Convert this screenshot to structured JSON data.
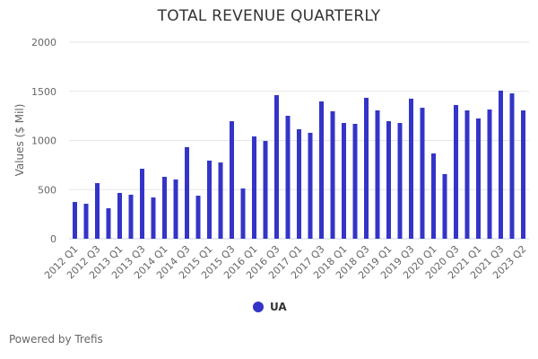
{
  "chart_data": {
    "type": "bar",
    "title": "TOTAL REVENUE QUARTERLY",
    "xlabel": "",
    "ylabel": "Values ($ Mil)",
    "ylim": [
      0,
      2000
    ],
    "yticks": [
      0,
      500,
      1000,
      1500,
      2000
    ],
    "grid": true,
    "legend_position": "bottom-center",
    "x_tick_labels": [
      "2012 Q1",
      "2012 Q3",
      "2013 Q1",
      "2013 Q3",
      "2014 Q1",
      "2014 Q3",
      "2015 Q1",
      "2015 Q3",
      "2016 Q1",
      "2016 Q3",
      "2017 Q1",
      "2017 Q3",
      "2018 Q1",
      "2018 Q3",
      "2019 Q1",
      "2019 Q3",
      "2020 Q1",
      "2020 Q3",
      "2021 Q1",
      "2021 Q3",
      "2023 Q2"
    ],
    "series": [
      {
        "name": "UA",
        "color": "#3434c8",
        "values": [
          374,
          356,
          566,
          310,
          466,
          448,
          712,
          420,
          630,
          603,
          932,
          438,
          795,
          776,
          1196,
          511,
          1041,
          995,
          1461,
          1251,
          1114,
          1078,
          1397,
          1297,
          1178,
          1169,
          1434,
          1306,
          1196,
          1178,
          1425,
          1333,
          868,
          658,
          1361,
          1306,
          1224,
          1315,
          1507,
          1479,
          1306
        ]
      }
    ]
  },
  "footer": {
    "credit": "Powered by Trefis"
  }
}
